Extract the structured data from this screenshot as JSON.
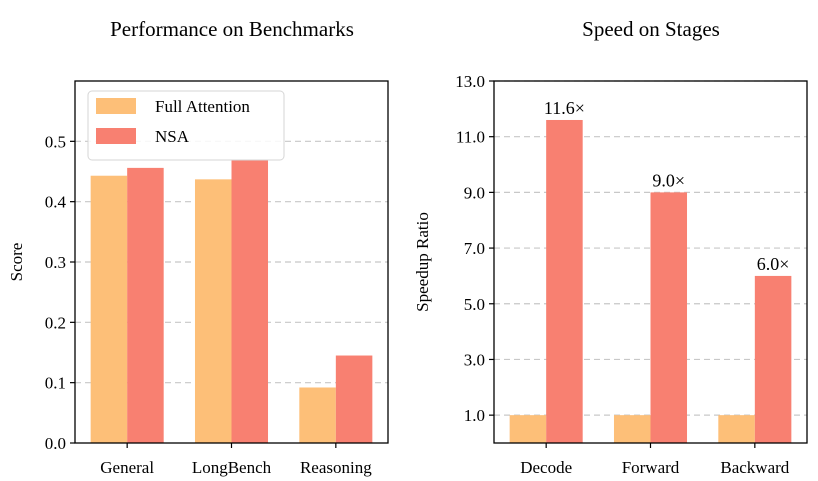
{
  "colors": {
    "full_attention": "#FDBF78",
    "nsa": "#F88071"
  },
  "chart_data": [
    {
      "type": "bar",
      "title": "Performance on Benchmarks",
      "xlabel": "",
      "ylabel": "Score",
      "categories": [
        "General",
        "LongBench",
        "Reasoning"
      ],
      "series": [
        {
          "name": "Full Attention",
          "values": [
            0.443,
            0.437,
            0.092
          ]
        },
        {
          "name": "NSA",
          "values": [
            0.456,
            0.469,
            0.145
          ]
        }
      ],
      "ylim": [
        0,
        0.6
      ],
      "yticks": [
        0.0,
        0.1,
        0.2,
        0.3,
        0.4,
        0.5
      ],
      "ytick_labels": [
        "0.0",
        "0.1",
        "0.2",
        "0.3",
        "0.4",
        "0.5"
      ],
      "grid": true,
      "legend": "upper-left"
    },
    {
      "type": "bar",
      "title": "Speed on Stages",
      "xlabel": "",
      "ylabel": "Speedup Ratio",
      "categories": [
        "Decode",
        "Forward",
        "Backward"
      ],
      "series": [
        {
          "name": "Full Attention",
          "values": [
            1.0,
            1.0,
            1.0
          ]
        },
        {
          "name": "NSA",
          "values": [
            11.6,
            9.0,
            6.0
          ]
        }
      ],
      "data_labels": [
        "11.6×",
        "9.0×",
        "6.0×"
      ],
      "ylim": [
        0,
        13.0
      ],
      "yticks": [
        1.0,
        3.0,
        5.0,
        7.0,
        9.0,
        11.0,
        13.0
      ],
      "ytick_labels": [
        "1.0",
        "3.0",
        "5.0",
        "7.0",
        "9.0",
        "11.0",
        "13.0"
      ],
      "grid": true,
      "legend": "none"
    }
  ]
}
